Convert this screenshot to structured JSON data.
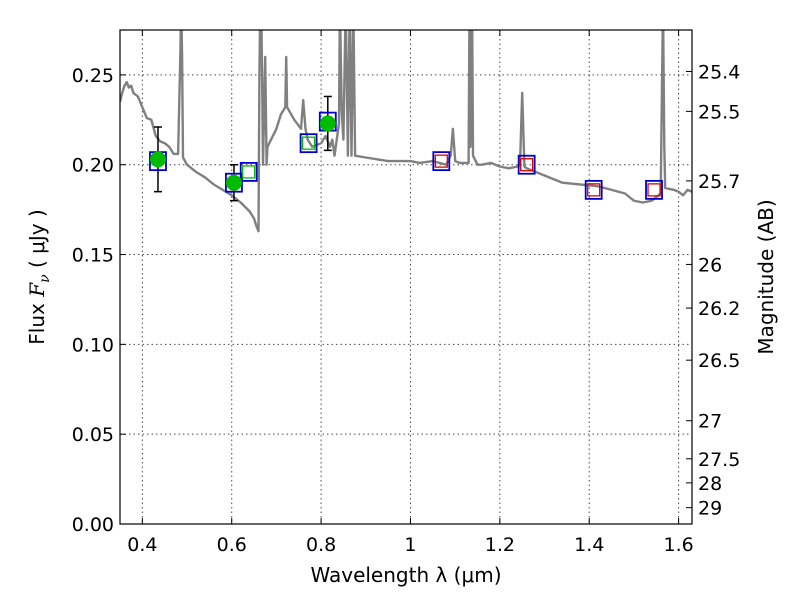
{
  "chart_data": {
    "type": "line",
    "xlabel": "Wavelength  λ (μm)",
    "ylabel_parts": {
      "flux": "Flux",
      "symbol": "F",
      "sub": "ν",
      "unit": " ( μJy )"
    },
    "right_ylabel": "Magnitude (AB)",
    "xlim": [
      0.35,
      1.63
    ],
    "ylim": [
      0.0,
      0.275
    ],
    "xticks": [
      {
        "value": 0.4,
        "label": "0.4"
      },
      {
        "value": 0.6,
        "label": "0.6"
      },
      {
        "value": 0.8,
        "label": "0.8"
      },
      {
        "value": 1.0,
        "label": "1"
      },
      {
        "value": 1.2,
        "label": "1.2"
      },
      {
        "value": 1.4,
        "label": "1.4"
      },
      {
        "value": 1.6,
        "label": "1.6"
      }
    ],
    "yticks": [
      {
        "value": 0.0,
        "label": "0.00"
      },
      {
        "value": 0.05,
        "label": "0.05"
      },
      {
        "value": 0.1,
        "label": "0.10"
      },
      {
        "value": 0.15,
        "label": "0.15"
      },
      {
        "value": 0.2,
        "label": "0.20"
      },
      {
        "value": 0.25,
        "label": "0.25"
      }
    ],
    "right_ticks": [
      {
        "flux": 0.2519,
        "label": "25.4"
      },
      {
        "flux": 0.2297,
        "label": "25.5"
      },
      {
        "flux": 0.191,
        "label": "25.7"
      },
      {
        "flux": 0.1445,
        "label": "26"
      },
      {
        "flux": 0.1202,
        "label": "26.2"
      },
      {
        "flux": 0.0912,
        "label": "26.5"
      },
      {
        "flux": 0.0575,
        "label": "27"
      },
      {
        "flux": 0.0363,
        "label": "27.5"
      },
      {
        "flux": 0.0229,
        "label": "28"
      },
      {
        "flux": 0.0091,
        "label": "29"
      }
    ],
    "grid": true,
    "series": [
      {
        "kind": "model_spectrum",
        "color": "#808080",
        "points": [
          [
            0.35,
            0.235
          ],
          [
            0.355,
            0.24
          ],
          [
            0.36,
            0.244
          ],
          [
            0.365,
            0.246
          ],
          [
            0.37,
            0.243
          ],
          [
            0.375,
            0.244
          ],
          [
            0.38,
            0.24
          ],
          [
            0.39,
            0.238
          ],
          [
            0.4,
            0.232
          ],
          [
            0.41,
            0.226
          ],
          [
            0.42,
            0.225
          ],
          [
            0.43,
            0.216
          ],
          [
            0.44,
            0.213
          ],
          [
            0.45,
            0.212
          ],
          [
            0.46,
            0.21
          ],
          [
            0.47,
            0.206
          ],
          [
            0.48,
            0.206
          ],
          [
            0.485,
            0.26
          ],
          [
            0.487,
            0.29
          ],
          [
            0.489,
            0.26
          ],
          [
            0.491,
            0.204
          ],
          [
            0.5,
            0.2
          ],
          [
            0.52,
            0.196
          ],
          [
            0.54,
            0.193
          ],
          [
            0.56,
            0.189
          ],
          [
            0.58,
            0.186
          ],
          [
            0.6,
            0.183
          ],
          [
            0.62,
            0.179
          ],
          [
            0.64,
            0.174
          ],
          [
            0.65,
            0.17
          ],
          [
            0.655,
            0.166
          ],
          [
            0.66,
            0.163
          ],
          [
            0.662,
            0.25
          ],
          [
            0.664,
            0.29
          ],
          [
            0.666,
            0.29
          ],
          [
            0.668,
            0.25
          ],
          [
            0.67,
            0.2
          ],
          [
            0.675,
            0.26
          ],
          [
            0.678,
            0.2
          ],
          [
            0.68,
            0.21
          ],
          [
            0.7,
            0.22
          ],
          [
            0.71,
            0.228
          ],
          [
            0.72,
            0.232
          ],
          [
            0.722,
            0.26
          ],
          [
            0.724,
            0.232
          ],
          [
            0.74,
            0.225
          ],
          [
            0.755,
            0.22
          ],
          [
            0.76,
            0.236
          ],
          [
            0.765,
            0.22
          ],
          [
            0.77,
            0.214
          ],
          [
            0.78,
            0.21
          ],
          [
            0.8,
            0.212
          ],
          [
            0.81,
            0.216
          ],
          [
            0.82,
            0.21
          ],
          [
            0.825,
            0.214
          ],
          [
            0.83,
            0.205
          ],
          [
            0.84,
            0.223
          ],
          [
            0.842,
            0.29
          ],
          [
            0.846,
            0.23
          ],
          [
            0.85,
            0.214
          ],
          [
            0.855,
            0.29
          ],
          [
            0.86,
            0.205
          ],
          [
            0.864,
            0.29
          ],
          [
            0.868,
            0.205
          ],
          [
            0.872,
            0.29
          ],
          [
            0.876,
            0.205
          ],
          [
            0.9,
            0.204
          ],
          [
            0.95,
            0.202
          ],
          [
            1.0,
            0.202
          ],
          [
            1.02,
            0.201
          ],
          [
            1.05,
            0.202
          ],
          [
            1.08,
            0.2
          ],
          [
            1.09,
            0.205
          ],
          [
            1.095,
            0.22
          ],
          [
            1.1,
            0.202
          ],
          [
            1.11,
            0.201
          ],
          [
            1.12,
            0.201
          ],
          [
            1.13,
            0.201
          ],
          [
            1.132,
            0.29
          ],
          [
            1.134,
            0.21
          ],
          [
            1.138,
            0.29
          ],
          [
            1.14,
            0.205
          ],
          [
            1.15,
            0.2
          ],
          [
            1.16,
            0.2
          ],
          [
            1.18,
            0.201
          ],
          [
            1.2,
            0.199
          ],
          [
            1.22,
            0.198
          ],
          [
            1.24,
            0.199
          ],
          [
            1.245,
            0.2
          ],
          [
            1.25,
            0.24
          ],
          [
            1.255,
            0.199
          ],
          [
            1.26,
            0.198
          ],
          [
            1.28,
            0.196
          ],
          [
            1.3,
            0.194
          ],
          [
            1.34,
            0.19
          ],
          [
            1.38,
            0.189
          ],
          [
            1.42,
            0.188
          ],
          [
            1.45,
            0.186
          ],
          [
            1.48,
            0.184
          ],
          [
            1.5,
            0.18
          ],
          [
            1.52,
            0.179
          ],
          [
            1.54,
            0.18
          ],
          [
            1.56,
            0.184
          ],
          [
            1.565,
            0.29
          ],
          [
            1.568,
            0.21
          ],
          [
            1.57,
            0.187
          ],
          [
            1.59,
            0.186
          ],
          [
            1.6,
            0.185
          ],
          [
            1.61,
            0.183
          ],
          [
            1.62,
            0.186
          ],
          [
            1.63,
            0.185
          ]
        ]
      }
    ],
    "observed_points": [
      {
        "x": 0.435,
        "y": 0.203,
        "yerr": 0.018,
        "color": "#00bb00"
      },
      {
        "x": 0.605,
        "y": 0.19,
        "yerr": 0.01,
        "color": "#00bb00"
      },
      {
        "x": 0.815,
        "y": 0.223,
        "yerr": 0.015,
        "color": "#00bb00"
      }
    ],
    "model_flux_points": [
      {
        "x": 0.435,
        "y": 0.202,
        "color": "#0000cc"
      },
      {
        "x": 0.605,
        "y": 0.19,
        "color": "#0000cc"
      },
      {
        "x": 0.638,
        "y": 0.196,
        "color": "#0000cc"
      },
      {
        "x": 0.772,
        "y": 0.212,
        "color": "#0000cc"
      },
      {
        "x": 0.815,
        "y": 0.224,
        "color": "#0000cc"
      },
      {
        "x": 1.069,
        "y": 0.202,
        "color": "#0000cc"
      },
      {
        "x": 1.26,
        "y": 0.2,
        "color": "#0000cc"
      },
      {
        "x": 1.41,
        "y": 0.186,
        "color": "#0000cc"
      },
      {
        "x": 1.545,
        "y": 0.186,
        "color": "#0000cc"
      }
    ],
    "inner_squares": [
      {
        "x": 0.638,
        "y": 0.196,
        "color": "#00bb00"
      },
      {
        "x": 0.772,
        "y": 0.212,
        "color": "#00bb00"
      },
      {
        "x": 1.069,
        "y": 0.202,
        "color": "#dd0000"
      },
      {
        "x": 1.26,
        "y": 0.2,
        "color": "#dd0000"
      },
      {
        "x": 1.41,
        "y": 0.186,
        "color": "#dd0000"
      },
      {
        "x": 1.545,
        "y": 0.186,
        "color": "#dd0000"
      }
    ]
  }
}
